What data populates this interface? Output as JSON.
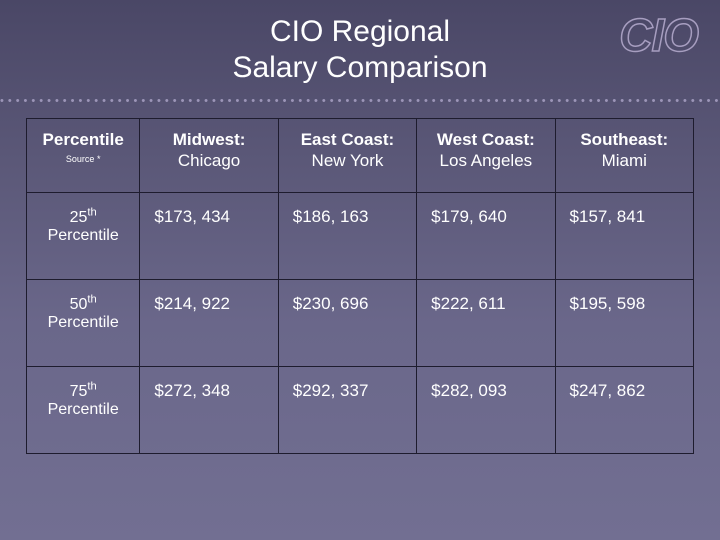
{
  "title_line1": "CIO Regional",
  "title_line2": "Salary Comparison",
  "logo_text": "CIO",
  "table": {
    "percentile_header": "Percentile",
    "source_label": "Source *",
    "regions": [
      {
        "name": "Midwest:",
        "city": "Chicago"
      },
      {
        "name": "East Coast:",
        "city": "New York"
      },
      {
        "name": "West Coast:",
        "city": "Los Angeles"
      },
      {
        "name": "Southeast:",
        "city": "Miami"
      }
    ],
    "rows": [
      {
        "ord": "25",
        "sup": "th",
        "word": "Percentile",
        "values": [
          "$173, 434",
          "$186, 163",
          "$179, 640",
          "$157, 841"
        ]
      },
      {
        "ord": "50",
        "sup": "th",
        "word": "Percentile",
        "values": [
          "$214, 922",
          "$230, 696",
          "$222, 611",
          "$195, 598"
        ]
      },
      {
        "ord": "75",
        "sup": "th",
        "word": "Percentile",
        "values": [
          "$272, 348",
          "$292, 337",
          "$282, 093",
          "$247, 862"
        ]
      }
    ]
  },
  "colors": {
    "bg_top": "#4a4766",
    "bg_bottom": "#726f92",
    "border": "#1e1c2e",
    "text": "#ffffff",
    "logo_stroke": "#a79ec0",
    "dots": "#9c95b8"
  }
}
